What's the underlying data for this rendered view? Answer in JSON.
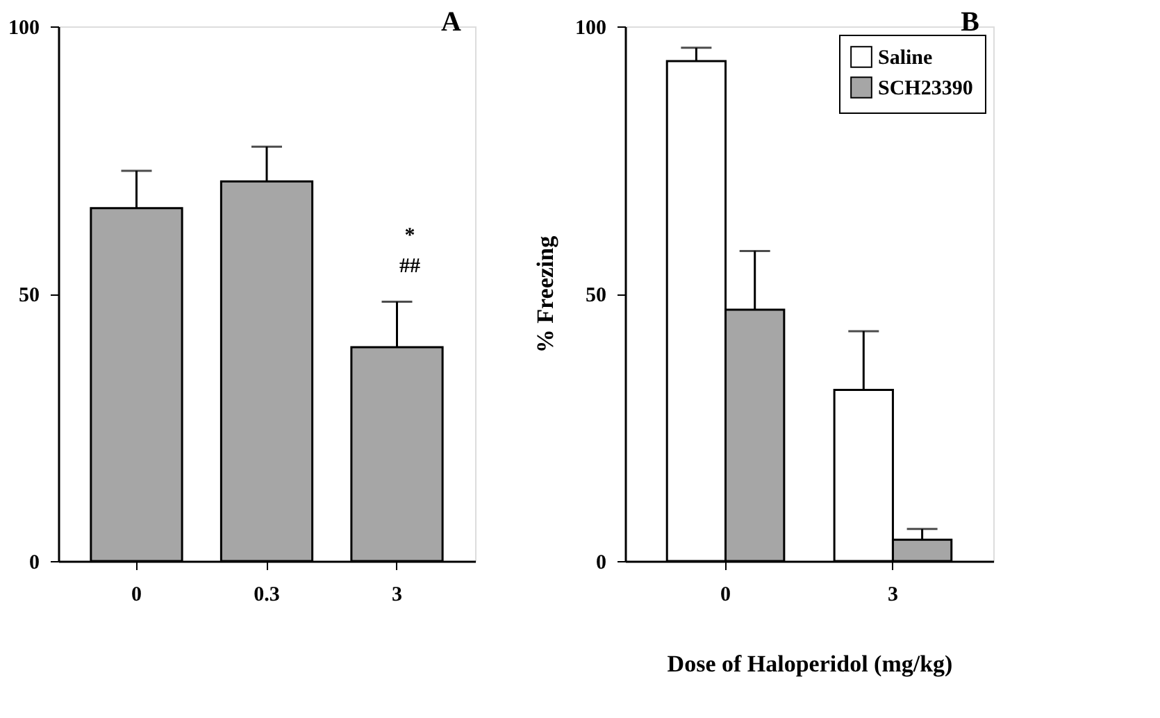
{
  "chart_data": [
    {
      "type": "bar",
      "title": "A",
      "categories": [
        "0",
        "0.3",
        "3"
      ],
      "ylim": [
        0,
        100
      ],
      "yticks": [
        0,
        50,
        100
      ],
      "grid": false,
      "legend": false,
      "series": [
        {
          "color": "#a6a6a6",
          "values": [
            66,
            71,
            40
          ],
          "errors": [
            [
              66,
              73
            ],
            [
              71,
              77.5
            ],
            [
              40,
              48.5
            ]
          ]
        }
      ],
      "annotations": [
        "*",
        "##"
      ]
    },
    {
      "type": "bar",
      "title": "B",
      "categories": [
        "0",
        "3"
      ],
      "ylim": [
        0,
        100
      ],
      "yticks": [
        0,
        50,
        100
      ],
      "grid": false,
      "legend": "top right",
      "ylabel": "% Freezing",
      "xlabel": "Dose of Haloperidol (mg/kg)",
      "series": [
        {
          "name": "Saline",
          "color": "#ffffff",
          "values": [
            93.5,
            32
          ],
          "errors": [
            [
              93.5,
              96
            ],
            [
              32,
              43
            ]
          ]
        },
        {
          "name": "SCH23390",
          "color": "#a6a6a6",
          "values": [
            47,
            4
          ],
          "errors": [
            [
              47,
              58
            ],
            [
              4,
              6
            ]
          ]
        }
      ]
    }
  ]
}
